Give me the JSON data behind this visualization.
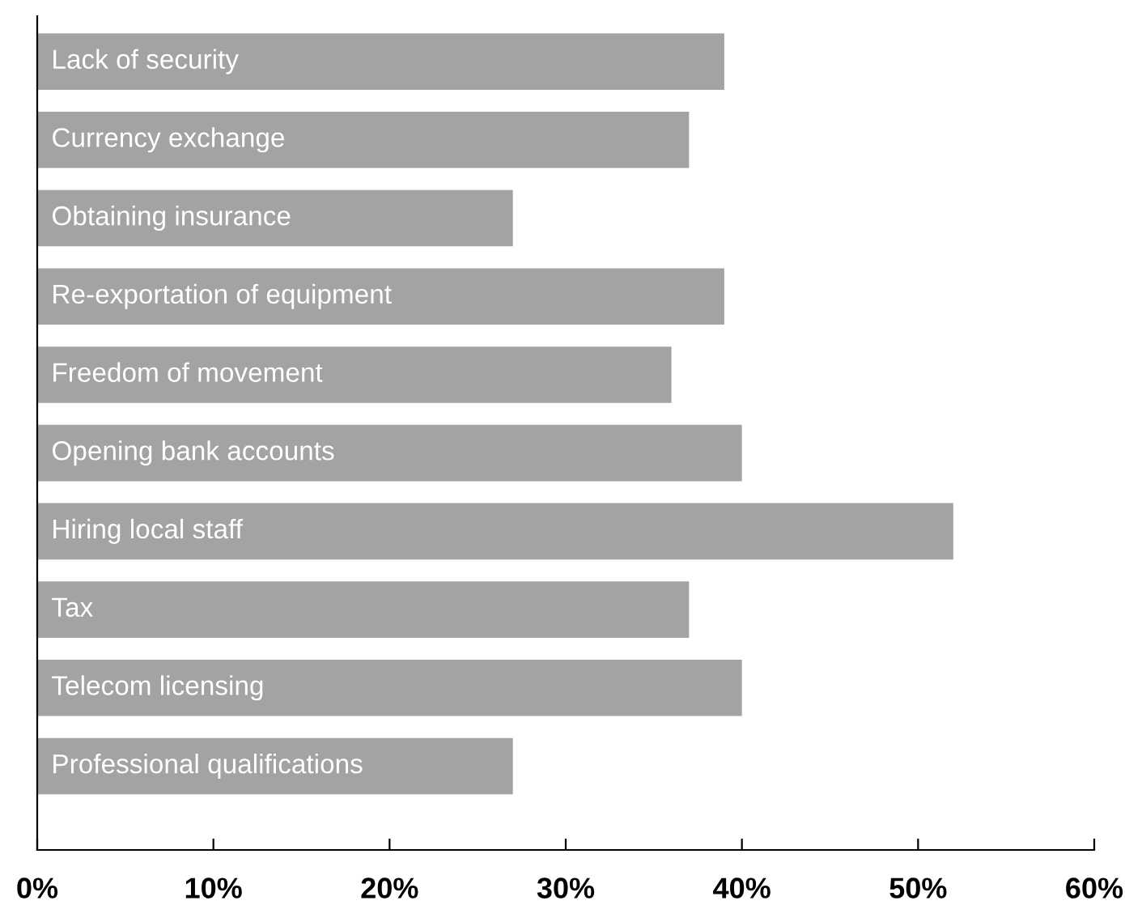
{
  "chart_data": {
    "type": "bar",
    "orientation": "horizontal",
    "categories": [
      "Lack of security",
      "Currency exchange",
      "Obtaining insurance",
      "Re-exportation of equipment",
      "Freedom of movement",
      "Opening bank accounts",
      "Hiring local staff",
      "Tax",
      "Telecom licensing",
      "Professional qualifications"
    ],
    "values": [
      39,
      37,
      27,
      39,
      36,
      40,
      52,
      37,
      40,
      27
    ],
    "color": "#a3a3a3",
    "xlim": [
      0,
      60
    ],
    "xticks": [
      {
        "value": 0,
        "label": "0%"
      },
      {
        "value": 10,
        "label": "10%"
      },
      {
        "value": 20,
        "label": "20%"
      },
      {
        "value": 30,
        "label": "30%"
      },
      {
        "value": 40,
        "label": "40%"
      },
      {
        "value": 50,
        "label": "50%"
      },
      {
        "value": 60,
        "label": "60%"
      }
    ],
    "tick_labels": "x",
    "grid": false
  }
}
